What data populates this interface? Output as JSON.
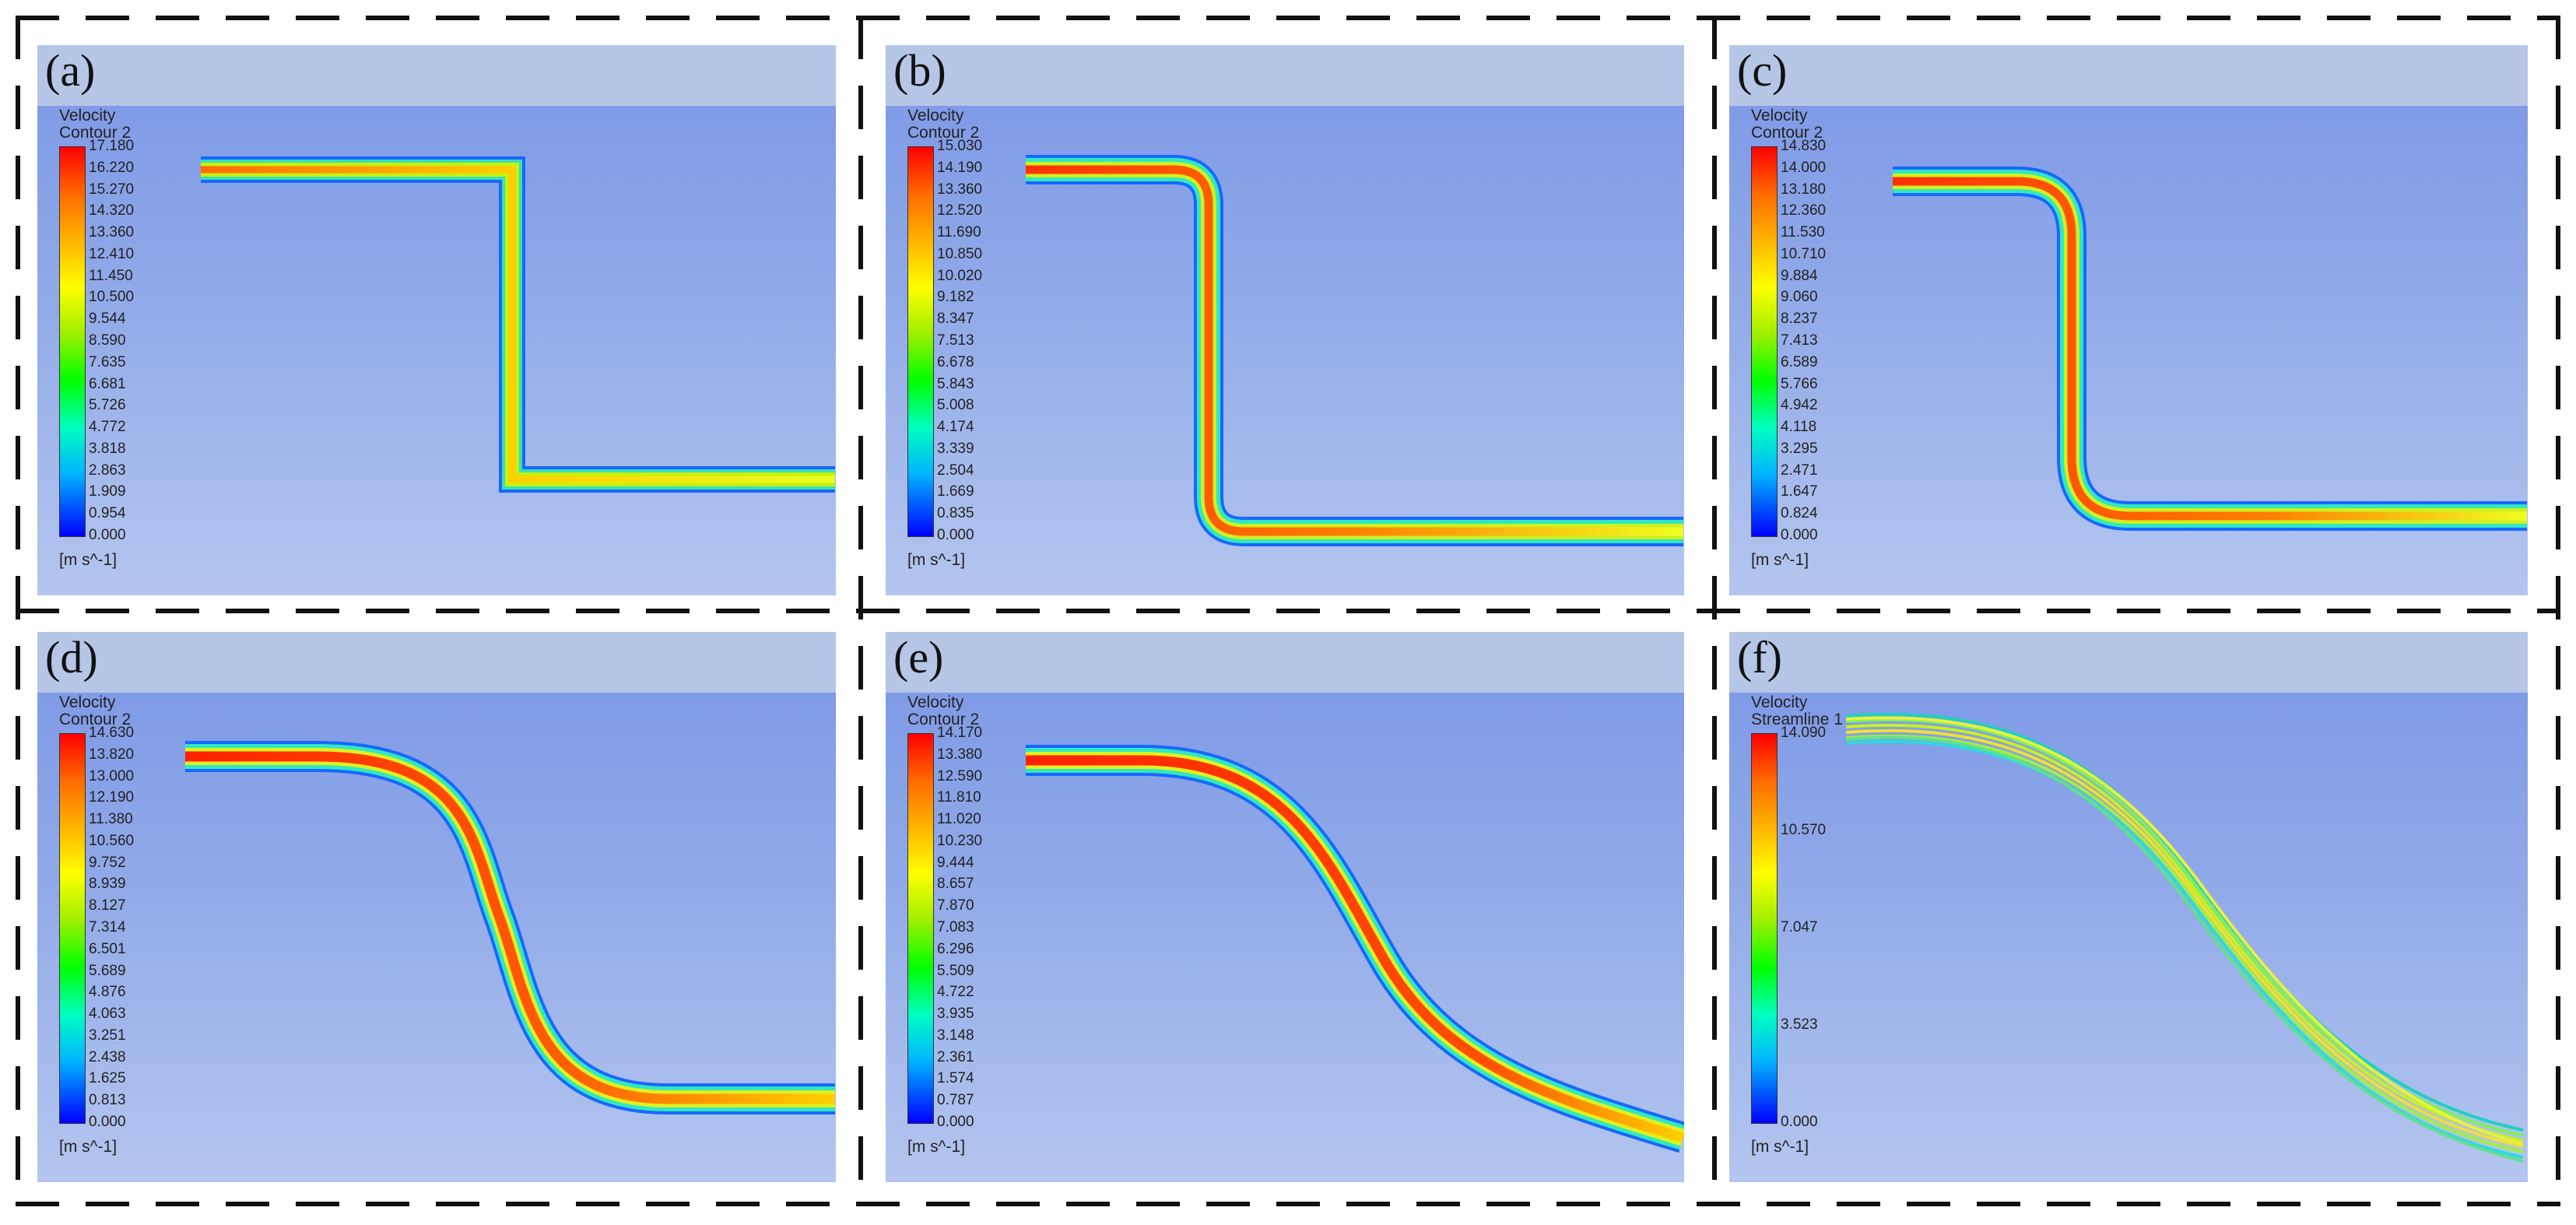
{
  "panels": [
    {
      "label": "(a)",
      "title1": "Velocity",
      "title2": "Contour 2",
      "ticks": [
        "17.180",
        "16.220",
        "15.270",
        "14.320",
        "13.360",
        "12.410",
        "11.450",
        "10.500",
        "9.544",
        "8.590",
        "7.635",
        "6.681",
        "5.726",
        "4.772",
        "3.818",
        "2.863",
        "1.909",
        "0.954",
        "0.000"
      ],
      "units": "[m s^-1]"
    },
    {
      "label": "(b)",
      "title1": "Velocity",
      "title2": "Contour 2",
      "ticks": [
        "15.030",
        "14.190",
        "13.360",
        "12.520",
        "11.690",
        "10.850",
        "10.020",
        "9.182",
        "8.347",
        "7.513",
        "6.678",
        "5.843",
        "5.008",
        "4.174",
        "3.339",
        "2.504",
        "1.669",
        "0.835",
        "0.000"
      ],
      "units": "[m s^-1]"
    },
    {
      "label": "(c)",
      "title1": "Velocity",
      "title2": "Contour 2",
      "ticks": [
        "14.830",
        "14.000",
        "13.180",
        "12.360",
        "11.530",
        "10.710",
        "9.884",
        "9.060",
        "8.237",
        "7.413",
        "6.589",
        "5.766",
        "4.942",
        "4.118",
        "3.295",
        "2.471",
        "1.647",
        "0.824",
        "0.000"
      ],
      "units": "[m s^-1]"
    },
    {
      "label": "(d)",
      "title1": "Velocity",
      "title2": "Contour 2",
      "ticks": [
        "14.630",
        "13.820",
        "13.000",
        "12.190",
        "11.380",
        "10.560",
        "9.752",
        "8.939",
        "8.127",
        "7.314",
        "6.501",
        "5.689",
        "4.876",
        "4.063",
        "3.251",
        "2.438",
        "1.625",
        "0.813",
        "0.000"
      ],
      "units": "[m s^-1]"
    },
    {
      "label": "(e)",
      "title1": "Velocity",
      "title2": "Contour 2",
      "ticks": [
        "14.170",
        "13.380",
        "12.590",
        "11.810",
        "11.020",
        "10.230",
        "9.444",
        "8.657",
        "7.870",
        "7.083",
        "6.296",
        "5.509",
        "4.722",
        "3.935",
        "3.148",
        "2.361",
        "1.574",
        "0.787",
        "0.000"
      ],
      "units": "[m s^-1]"
    },
    {
      "label": "(f)",
      "title1": "Velocity",
      "title2": "Streamline 1",
      "ticks": [
        "14.090",
        "10.570",
        "7.047",
        "3.523",
        "0.000"
      ],
      "units": "[m s^-1]"
    }
  ]
}
